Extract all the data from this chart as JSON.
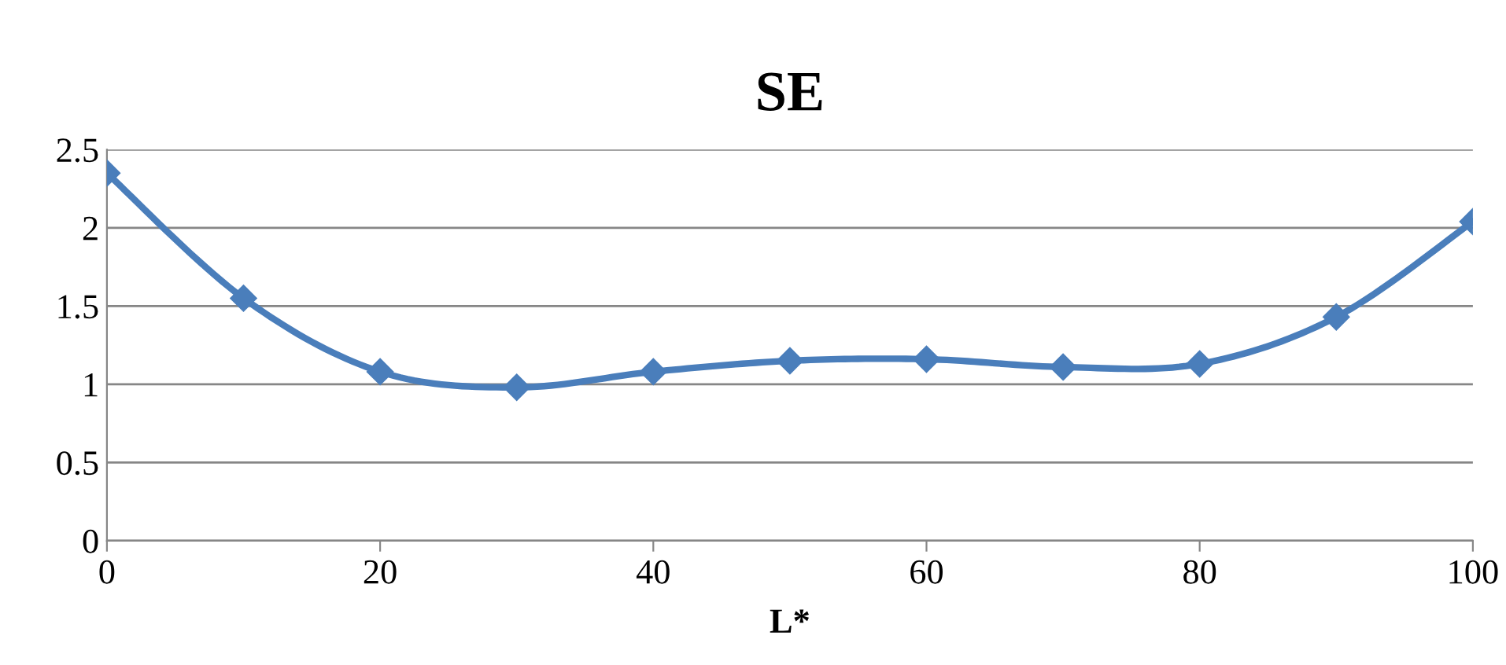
{
  "chart_data": {
    "type": "line",
    "title": "SE",
    "xlabel": "L*",
    "x": [
      0,
      10,
      20,
      30,
      40,
      50,
      60,
      70,
      80,
      90,
      100
    ],
    "series": [
      {
        "color": "#4a7ebb",
        "values": [
          2.35,
          1.55,
          1.08,
          0.98,
          1.08,
          1.15,
          1.16,
          1.11,
          1.13,
          1.43,
          2.04
        ]
      }
    ],
    "xlim": [
      0,
      100
    ],
    "xticks": [
      0,
      20,
      40,
      60,
      80,
      100
    ],
    "ylim": [
      0,
      2.5
    ],
    "yticks": [
      0,
      0.5,
      1,
      1.5,
      2,
      2.5
    ],
    "grid": "y",
    "marker": "diamond",
    "line_style": "solid"
  }
}
